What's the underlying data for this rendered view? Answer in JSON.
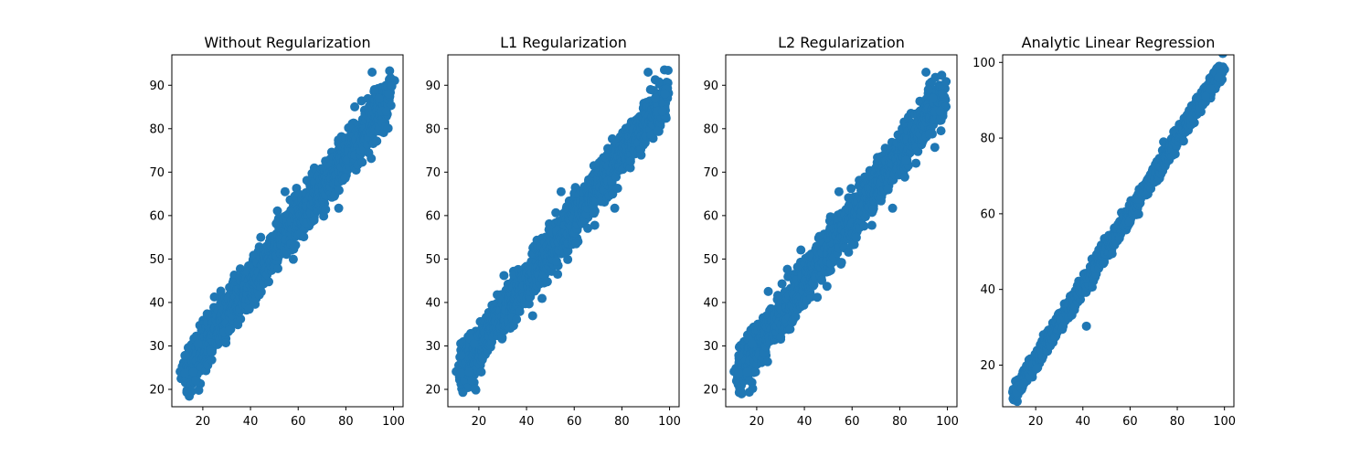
{
  "chart_data": [
    {
      "type": "scatter",
      "title": "Without Regularization",
      "xlabel": "",
      "ylabel": "",
      "xlim": [
        7,
        104
      ],
      "ylim": [
        16,
        97
      ],
      "xticks": [
        20,
        40,
        60,
        80,
        100
      ],
      "yticks": [
        20,
        30,
        40,
        50,
        60,
        70,
        80,
        90
      ],
      "grid": false,
      "color": "#1f77b4",
      "trend": {
        "slope": 0.73,
        "intercept": 15.4,
        "x_range": [
          12,
          99
        ],
        "spread": 2.6
      },
      "points": [
        [
          10.5,
          24.1
        ],
        [
          12.5,
          23.7
        ],
        [
          13.3,
          19.3
        ],
        [
          12.5,
          27.8
        ],
        [
          18.0,
          21.6
        ],
        [
          18.3,
          19.8
        ],
        [
          16.0,
          24.0
        ],
        [
          17.0,
          22.0
        ],
        [
          16.3,
          31.7
        ],
        [
          18.0,
          30.5
        ],
        [
          91.0,
          93.0
        ],
        [
          77.0,
          61.7
        ],
        [
          54.5,
          65.5
        ],
        [
          95.0,
          84.0
        ],
        [
          97.0,
          84.0
        ],
        [
          98.0,
          88.0
        ],
        [
          94.0,
          87.0
        ],
        [
          92.0,
          89.0
        ]
      ]
    },
    {
      "type": "scatter",
      "title": "L1 Regularization",
      "xlabel": "",
      "ylabel": "",
      "xlim": [
        7,
        104
      ],
      "ylim": [
        16,
        97
      ],
      "xticks": [
        20,
        40,
        60,
        80,
        100
      ],
      "yticks": [
        20,
        30,
        40,
        50,
        60,
        70,
        80,
        90
      ],
      "grid": false,
      "color": "#1f77b4",
      "trend": {
        "slope": 0.73,
        "intercept": 15.4,
        "x_range": [
          12,
          99
        ],
        "spread": 2.6
      },
      "points": [
        [
          10.5,
          24.1
        ],
        [
          12.5,
          23.7
        ],
        [
          13.3,
          19.3
        ],
        [
          12.5,
          27.8
        ],
        [
          18.0,
          21.6
        ],
        [
          18.3,
          20.2
        ],
        [
          16.0,
          24.0
        ],
        [
          17.0,
          22.0
        ],
        [
          16.3,
          31.7
        ],
        [
          18.0,
          30.5
        ],
        [
          91.0,
          93.0
        ],
        [
          77.0,
          61.7
        ],
        [
          54.5,
          65.5
        ],
        [
          95.0,
          84.0
        ],
        [
          97.0,
          84.0
        ],
        [
          98.0,
          88.0
        ],
        [
          94.0,
          87.0
        ],
        [
          92.0,
          89.0
        ]
      ]
    },
    {
      "type": "scatter",
      "title": "L2 Regularization",
      "xlabel": "",
      "ylabel": "",
      "xlim": [
        7,
        104
      ],
      "ylim": [
        16,
        97
      ],
      "xticks": [
        20,
        40,
        60,
        80,
        100
      ],
      "yticks": [
        20,
        30,
        40,
        50,
        60,
        70,
        80,
        90
      ],
      "grid": false,
      "color": "#1f77b4",
      "trend": {
        "slope": 0.73,
        "intercept": 15.4,
        "x_range": [
          12,
          99
        ],
        "spread": 2.6
      },
      "points": [
        [
          10.5,
          24.1
        ],
        [
          12.5,
          23.7
        ],
        [
          13.3,
          19.6
        ],
        [
          12.5,
          27.8
        ],
        [
          18.0,
          21.6
        ],
        [
          18.3,
          20.2
        ],
        [
          16.0,
          24.0
        ],
        [
          17.0,
          22.0
        ],
        [
          16.3,
          31.7
        ],
        [
          18.0,
          30.5
        ],
        [
          91.0,
          93.0
        ],
        [
          77.0,
          61.7
        ],
        [
          54.5,
          65.5
        ],
        [
          95.0,
          84.0
        ],
        [
          97.0,
          84.0
        ],
        [
          98.0,
          88.0
        ],
        [
          94.0,
          87.0
        ],
        [
          92.0,
          89.0
        ]
      ]
    },
    {
      "type": "scatter",
      "title": "Analytic Linear Regression",
      "xlabel": "",
      "ylabel": "",
      "xlim": [
        6,
        104
      ],
      "ylim": [
        9,
        102
      ],
      "xticks": [
        20,
        40,
        60,
        80,
        100
      ],
      "yticks": [
        20,
        40,
        60,
        80,
        100
      ],
      "grid": false,
      "color": "#1f77b4",
      "trend": {
        "slope": 0.975,
        "intercept": 1.85,
        "x_range": [
          11,
          99
        ],
        "spread": 1.3
      },
      "points": [
        [
          10.5,
          13.6
        ],
        [
          12.0,
          12.8
        ],
        [
          13.0,
          14.5
        ],
        [
          14.0,
          13.9
        ],
        [
          15.0,
          15.2
        ],
        [
          41.5,
          30.3
        ],
        [
          96.0,
          97.5
        ],
        [
          98.5,
          97.2
        ],
        [
          99.0,
          95.5
        ],
        [
          97.5,
          96.0
        ],
        [
          94.0,
          93.0
        ],
        [
          92.0,
          91.0
        ]
      ]
    }
  ]
}
